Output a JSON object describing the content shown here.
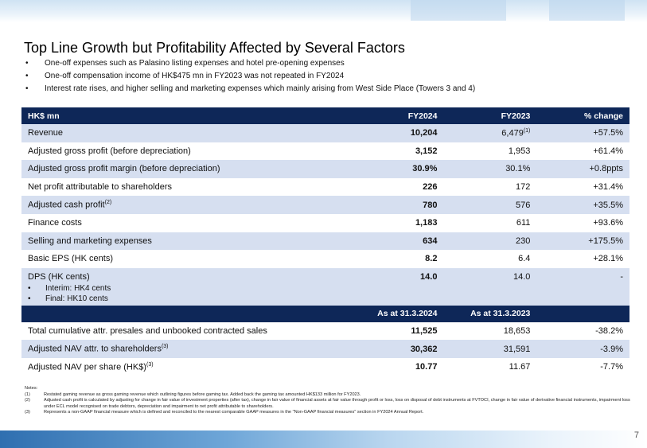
{
  "title": "Top Line Growth but Profitability Affected by Several Factors",
  "bullets": [
    "One-off expenses such as Palasino listing expenses and hotel pre-opening expenses",
    "One-off compensation income of HK$475 mn in FY2023 was not repeated in FY2024",
    "Interest rate rises, and higher selling and marketing expenses which mainly arising from West Side Place (Towers 3 and 4)"
  ],
  "bullet_glyph": "•",
  "table": {
    "header": {
      "label": "HK$ mn",
      "col1": "FY2024",
      "col2": "FY2023",
      "col3": "% change"
    },
    "rows": [
      {
        "label": "Revenue",
        "fy2024": "10,204",
        "fy2023": "6,479",
        "fy2023_sup": "(1)",
        "change": "+57.5%"
      },
      {
        "label": "Adjusted gross profit (before depreciation)",
        "fy2024": "3,152",
        "fy2023": "1,953",
        "change": "+61.4%"
      },
      {
        "label": "Adjusted gross profit margin (before depreciation)",
        "fy2024": "30.9%",
        "fy2023": "30.1%",
        "change": "+0.8ppts"
      },
      {
        "label": "Net profit attributable to shareholders",
        "fy2024": "226",
        "fy2023": "172",
        "change": "+31.4%"
      },
      {
        "label": "Adjusted cash profit",
        "label_sup": "(2)",
        "fy2024": "780",
        "fy2023": "576",
        "change": "+35.5%"
      },
      {
        "label": "Finance costs",
        "fy2024": "1,183",
        "fy2023": "611",
        "change": "+93.6%"
      },
      {
        "label": "Selling and marketing expenses",
        "fy2024": "634",
        "fy2023": "230",
        "change": "+175.5%"
      },
      {
        "label": "Basic EPS (HK cents)",
        "fy2024": "8.2",
        "fy2023": "6.4",
        "change": "+28.1%"
      },
      {
        "label": "DPS (HK cents)",
        "sub": [
          "Interim: HK4 cents",
          "Final: HK10 cents"
        ],
        "fy2024": "14.0",
        "fy2023": "14.0",
        "change": "-"
      }
    ],
    "header2": {
      "col1": "As at 31.3.2024",
      "col2": "As at 31.3.2023"
    },
    "rows2": [
      {
        "label": "Total cumulative attr. presales and unbooked contracted sales",
        "v1": "11,525",
        "v2": "18,653",
        "change": "-38.2%"
      },
      {
        "label": "Adjusted NAV attr. to shareholders",
        "label_sup": "(3)",
        "v1": "30,362",
        "v2": "31,591",
        "change": "-3.9%"
      },
      {
        "label": "Adjusted NAV per share (HK$)",
        "label_sup": "(3)",
        "v1": "10.77",
        "v2": "11.67",
        "change": "-7.7%"
      }
    ]
  },
  "notes": {
    "heading": "Notes:",
    "items": [
      {
        "n": "(1)",
        "t": "Restated gaming revenue as gross gaming revenue which outlining figures before gaming tax. Added back the gaming tax amounted HK$133 million for FY2023."
      },
      {
        "n": "(2)",
        "t": "Adjusted cash profit is calculated by adjusting for change in fair value of investment properties (after tax), change in fair value of financial assets at fair value through profit or loss, loss on disposal of debt instruments at FVTOCI, change in fair value of derivative financial instruments, impairment loss under ECL model recognised on trade debtors, depreciation and impairment to net profit attributable to shareholders."
      },
      {
        "n": "(3)",
        "t": "Represents a non-GAAP financial measure which is defined and reconciled to the nearest comparable GAAP measures in the \"Non-GAAP financial measures\" section in FY2024 Annual Report."
      }
    ]
  },
  "page_number": "7",
  "colors": {
    "header_bg": "#0e2758",
    "row_shade": "#d6dff0",
    "band_blue": "#2f6fb0"
  }
}
